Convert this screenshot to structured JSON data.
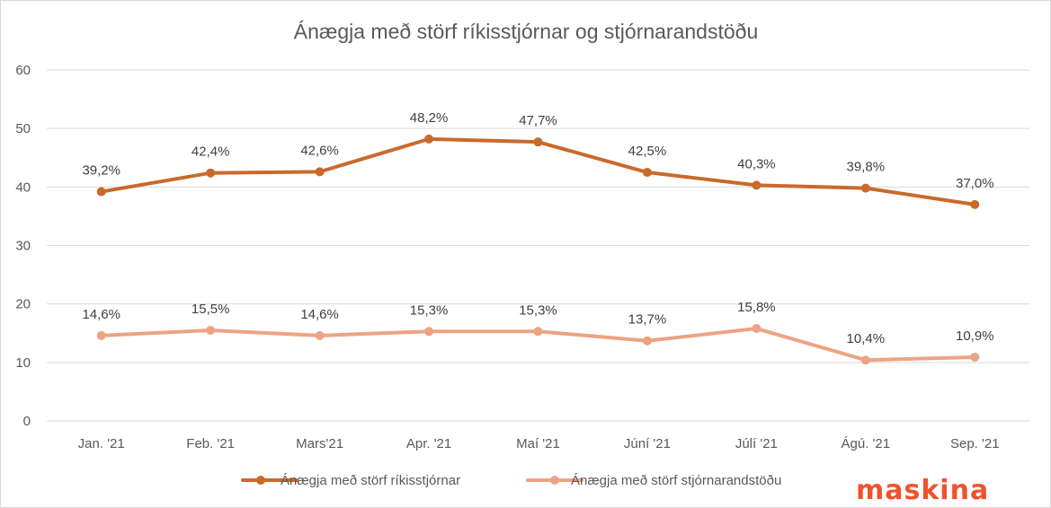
{
  "chart_data": {
    "type": "line",
    "title": "Ánægja með störf ríkisstjórnar og stjórnarandstöðu",
    "categories": [
      "Jan. '21",
      "Feb. '21",
      "Mars'21",
      "Apr. '21",
      "Maí '21",
      "Júní '21",
      "Júlí '21",
      "Ágú. '21",
      "Sep. '21"
    ],
    "ylim": [
      0,
      60
    ],
    "yticks": [
      "0",
      "10",
      "20",
      "30",
      "40",
      "50",
      "60"
    ],
    "grid": true,
    "legend_position": "bottom",
    "series": [
      {
        "name": "Ánægja með störf ríkisstjórnar",
        "color": "#c96a2b",
        "values": [
          39.2,
          42.4,
          42.6,
          48.2,
          47.7,
          42.5,
          40.3,
          39.8,
          37.0
        ],
        "labels": [
          "39,2%",
          "42,4%",
          "42,6%",
          "48,2%",
          "47,7%",
          "42,5%",
          "40,3%",
          "39,8%",
          "37,0%"
        ]
      },
      {
        "name": "Ánægja með störf stjórnarandstöðu",
        "color": "#eda383",
        "values": [
          14.6,
          15.5,
          14.6,
          15.3,
          15.3,
          13.7,
          15.8,
          10.4,
          10.9
        ],
        "labels": [
          "14,6%",
          "15,5%",
          "14,6%",
          "15,3%",
          "15,3%",
          "13,7%",
          "15,8%",
          "10,4%",
          "10,9%"
        ]
      }
    ]
  },
  "logo": {
    "text": "maskina",
    "color": "#f0522d"
  }
}
